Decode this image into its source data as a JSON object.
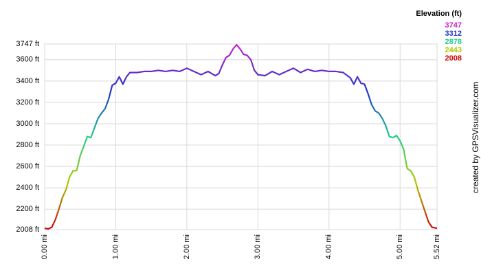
{
  "chart_data": {
    "type": "line",
    "x": [
      0,
      0.05,
      0.1,
      0.15,
      0.2,
      0.25,
      0.3,
      0.35,
      0.4,
      0.45,
      0.5,
      0.55,
      0.6,
      0.65,
      0.7,
      0.75,
      0.8,
      0.85,
      0.9,
      0.95,
      1.0,
      1.05,
      1.1,
      1.15,
      1.2,
      1.3,
      1.4,
      1.5,
      1.6,
      1.7,
      1.8,
      1.9,
      2.0,
      2.1,
      2.2,
      2.3,
      2.4,
      2.45,
      2.5,
      2.55,
      2.6,
      2.65,
      2.7,
      2.75,
      2.8,
      2.85,
      2.9,
      2.95,
      3.0,
      3.1,
      3.2,
      3.3,
      3.4,
      3.5,
      3.6,
      3.7,
      3.8,
      3.9,
      4.0,
      4.1,
      4.2,
      4.3,
      4.35,
      4.4,
      4.45,
      4.5,
      4.55,
      4.6,
      4.65,
      4.7,
      4.75,
      4.8,
      4.85,
      4.9,
      4.95,
      5.0,
      5.05,
      5.1,
      5.15,
      5.2,
      5.25,
      5.3,
      5.35,
      5.4,
      5.45,
      5.52
    ],
    "series": [
      {
        "name": "Elevation (ft)",
        "values": [
          2020,
          2015,
          2030,
          2100,
          2200,
          2310,
          2380,
          2500,
          2560,
          2560,
          2700,
          2790,
          2880,
          2870,
          2960,
          3050,
          3100,
          3140,
          3230,
          3360,
          3380,
          3440,
          3370,
          3440,
          3480,
          3480,
          3490,
          3490,
          3500,
          3490,
          3500,
          3490,
          3520,
          3490,
          3460,
          3490,
          3450,
          3470,
          3550,
          3620,
          3640,
          3700,
          3740,
          3700,
          3650,
          3640,
          3600,
          3500,
          3460,
          3450,
          3490,
          3460,
          3490,
          3520,
          3480,
          3510,
          3490,
          3500,
          3490,
          3490,
          3480,
          3430,
          3370,
          3440,
          3380,
          3370,
          3280,
          3180,
          3120,
          3100,
          3050,
          2980,
          2880,
          2870,
          2890,
          2840,
          2760,
          2580,
          2560,
          2500,
          2380,
          2280,
          2180,
          2080,
          2030,
          2020
        ]
      }
    ],
    "color_scale": [
      {
        "value": 3747,
        "color": "#cc22cc"
      },
      {
        "value": 3312,
        "color": "#2233cc"
      },
      {
        "value": 2878,
        "color": "#22cc88"
      },
      {
        "value": 2443,
        "color": "#aacc00"
      },
      {
        "value": 2008,
        "color": "#cc0000"
      }
    ],
    "credit": "created by GPSVisualizer.com",
    "xlim": [
      0,
      5.52
    ],
    "ylim": [
      2008,
      3747
    ],
    "xticks": [
      {
        "value": 0,
        "label": "0.00 mi"
      },
      {
        "value": 1,
        "label": "1.00 mi"
      },
      {
        "value": 2,
        "label": "2.00 mi"
      },
      {
        "value": 3,
        "label": "3.00 mi"
      },
      {
        "value": 4,
        "label": "4.00 mi"
      },
      {
        "value": 5,
        "label": "5.00 mi"
      },
      {
        "value": 5.52,
        "label": "5.52 mi"
      }
    ],
    "yticks": [
      {
        "value": 2008,
        "label": "2008 ft"
      },
      {
        "value": 2200,
        "label": "2200 ft"
      },
      {
        "value": 2400,
        "label": "2400 ft"
      },
      {
        "value": 2600,
        "label": "2600 ft"
      },
      {
        "value": 2800,
        "label": "2800 ft"
      },
      {
        "value": 3000,
        "label": "3000 ft"
      },
      {
        "value": 3200,
        "label": "3200 ft"
      },
      {
        "value": 3400,
        "label": "3400 ft"
      },
      {
        "value": 3600,
        "label": "3600 ft"
      },
      {
        "value": 3747,
        "label": "3747 ft"
      }
    ],
    "grid": true
  }
}
